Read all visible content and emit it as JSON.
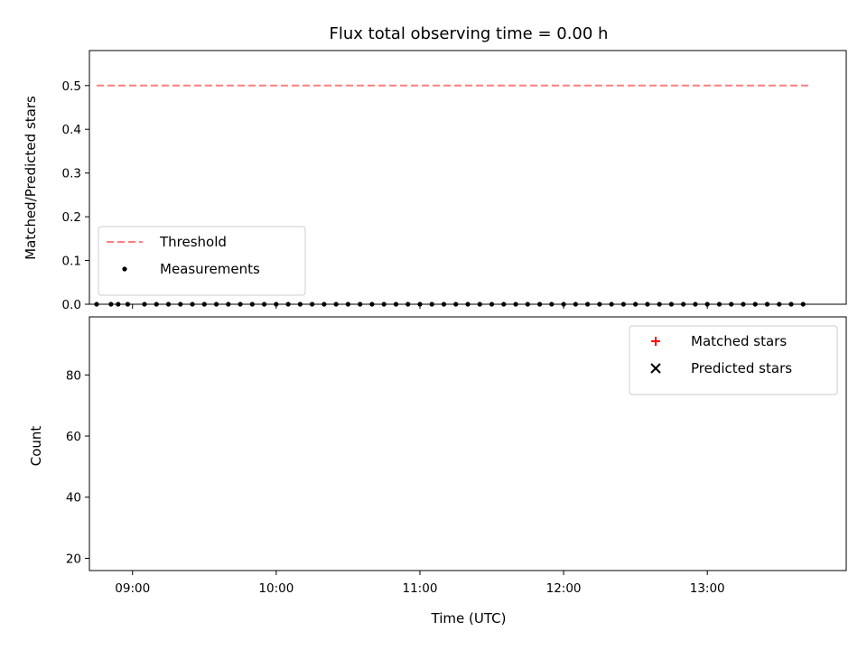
{
  "chart_data": [
    {
      "type": "scatter",
      "title": "Flux total observing time = 0.00 h",
      "ylabel": "Matched/Predicted stars",
      "xlabel": "",
      "xlim": [
        "08:42",
        "13:58"
      ],
      "ylim": [
        0,
        0.58
      ],
      "yticks": [
        0.0,
        0.1,
        0.2,
        0.3,
        0.4,
        0.5
      ],
      "ytick_labels": [
        "0.0",
        "0.1",
        "0.2",
        "0.3",
        "0.4",
        "0.5"
      ],
      "xticks": [
        "09:00",
        "10:00",
        "11:00",
        "12:00",
        "13:00"
      ],
      "show_xtick_labels": false,
      "grid": false,
      "legend_position": "lower-left",
      "series": [
        {
          "name": "Threshold",
          "kind": "line",
          "style": "dashed",
          "color": "#ff7f7f",
          "x": [
            "08:45",
            "13:43"
          ],
          "y": [
            0.5,
            0.5
          ]
        },
        {
          "name": "Measurements",
          "kind": "scatter",
          "marker": "dot",
          "color": "#000000",
          "x": [
            "08:45",
            "08:51",
            "08:54",
            "08:58",
            "09:05",
            "09:10",
            "09:15",
            "09:20",
            "09:25",
            "09:30",
            "09:35",
            "09:40",
            "09:45",
            "09:50",
            "09:55",
            "10:00",
            "10:05",
            "10:10",
            "10:15",
            "10:20",
            "10:25",
            "10:30",
            "10:35",
            "10:40",
            "10:45",
            "10:50",
            "10:55",
            "11:00",
            "11:05",
            "11:10",
            "11:15",
            "11:20",
            "11:25",
            "11:30",
            "11:35",
            "11:40",
            "11:45",
            "11:50",
            "11:55",
            "12:00",
            "12:05",
            "12:10",
            "12:15",
            "12:20",
            "12:25",
            "12:30",
            "12:35",
            "12:40",
            "12:45",
            "12:50",
            "12:55",
            "13:00",
            "13:05",
            "13:10",
            "13:15",
            "13:20",
            "13:25",
            "13:30",
            "13:35",
            "13:40"
          ],
          "y": [
            0,
            0,
            0,
            0,
            0,
            0,
            0,
            0,
            0,
            0,
            0,
            0,
            0,
            0,
            0,
            0,
            0,
            0,
            0,
            0,
            0,
            0,
            0,
            0,
            0,
            0,
            0,
            0,
            0,
            0,
            0,
            0,
            0,
            0,
            0,
            0,
            0,
            0,
            0,
            0,
            0,
            0,
            0,
            0,
            0,
            0,
            0,
            0,
            0,
            0,
            0,
            0,
            0,
            0,
            0,
            0,
            0,
            0,
            0,
            0
          ]
        }
      ]
    },
    {
      "type": "scatter",
      "title": "",
      "ylabel": "Count",
      "xlabel": "Time (UTC)",
      "xlim": [
        "08:42",
        "13:58"
      ],
      "ylim": [
        16,
        99
      ],
      "yticks": [
        20,
        40,
        60,
        80
      ],
      "ytick_labels": [
        "20",
        "40",
        "60",
        "80"
      ],
      "xticks": [
        "09:00",
        "10:00",
        "11:00",
        "12:00",
        "13:00"
      ],
      "xtick_labels": [
        "09:00",
        "10:00",
        "11:00",
        "12:00",
        "13:00"
      ],
      "show_xtick_labels": true,
      "grid": false,
      "legend_position": "upper-right",
      "series": [
        {
          "name": "Matched stars",
          "kind": "scatter",
          "marker": "plus",
          "color": "#ff0000",
          "x": [],
          "y": []
        },
        {
          "name": "Predicted stars",
          "kind": "scatter",
          "marker": "x",
          "color": "#000000",
          "x": [],
          "y": []
        }
      ]
    }
  ]
}
